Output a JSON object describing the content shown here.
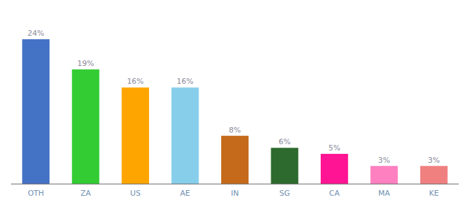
{
  "chart_data": {
    "type": "bar",
    "categories": [
      "OTH",
      "ZA",
      "US",
      "AE",
      "IN",
      "SG",
      "CA",
      "MA",
      "KE"
    ],
    "values": [
      24,
      19,
      16,
      16,
      8,
      6,
      5,
      3,
      3
    ],
    "value_labels": [
      "24%",
      "19%",
      "16%",
      "16%",
      "8%",
      "6%",
      "5%",
      "3%",
      "3%"
    ],
    "colors": [
      "#4472c4",
      "#33cc33",
      "#ffa500",
      "#87ceeb",
      "#c46a1a",
      "#2d6a2d",
      "#ff1493",
      "#ff80c0",
      "#f08080"
    ],
    "ylim": [
      0,
      28
    ],
    "data_labels": true,
    "tick_labels": "x",
    "grid": false
  }
}
